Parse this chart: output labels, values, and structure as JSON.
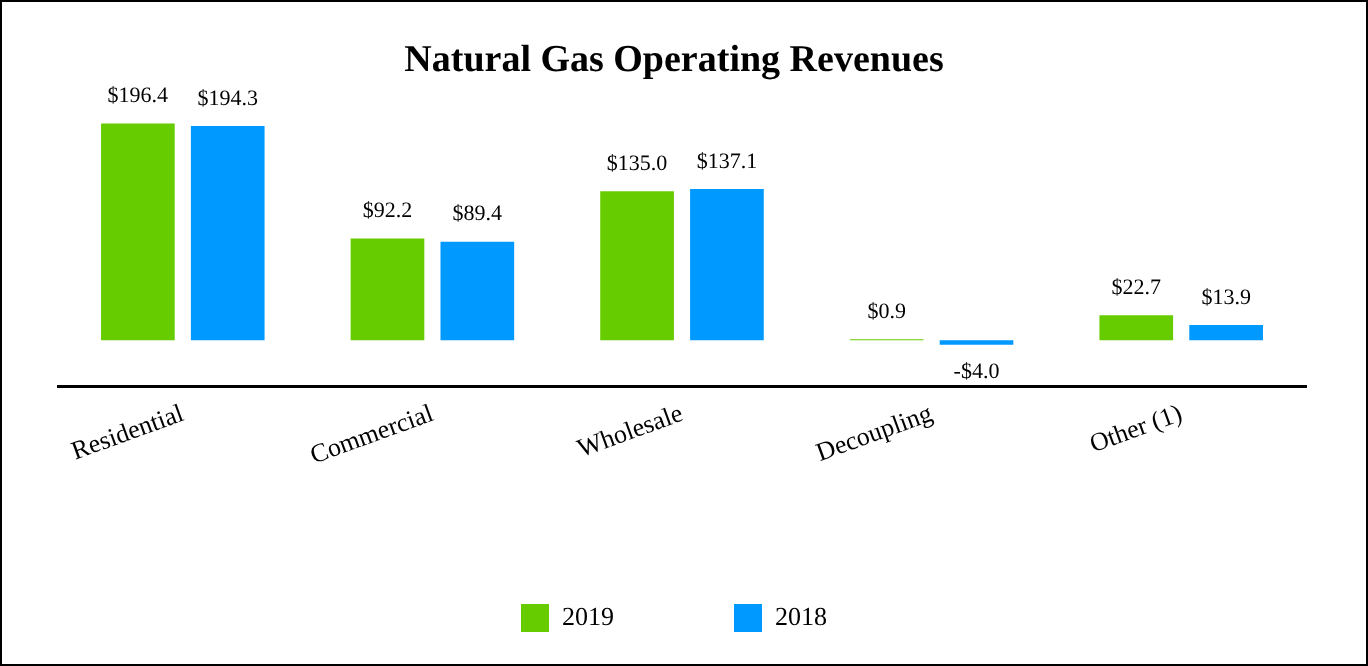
{
  "chart_data": {
    "type": "bar",
    "title": "Natural Gas Operating Revenues",
    "categories": [
      "Residential",
      "Commercial",
      "Wholesale",
      "Decoupling",
      "Other (1)"
    ],
    "series": [
      {
        "name": "2019",
        "color": "#66cc00",
        "values": [
          196.4,
          92.2,
          135.0,
          0.9,
          22.7
        ],
        "value_labels": [
          "$196.4",
          "$92.2",
          "$135.0",
          "$0.9",
          "$22.7"
        ]
      },
      {
        "name": "2018",
        "color": "#0099ff",
        "values": [
          194.3,
          89.4,
          137.1,
          -4.0,
          13.9
        ],
        "value_labels": [
          "$194.3",
          "$89.4",
          "$137.1",
          "-$4.0",
          "$13.9"
        ]
      }
    ],
    "ylim": [
      -42,
      200
    ],
    "tick_labels": "x",
    "grid": false,
    "legend": "bottom"
  }
}
